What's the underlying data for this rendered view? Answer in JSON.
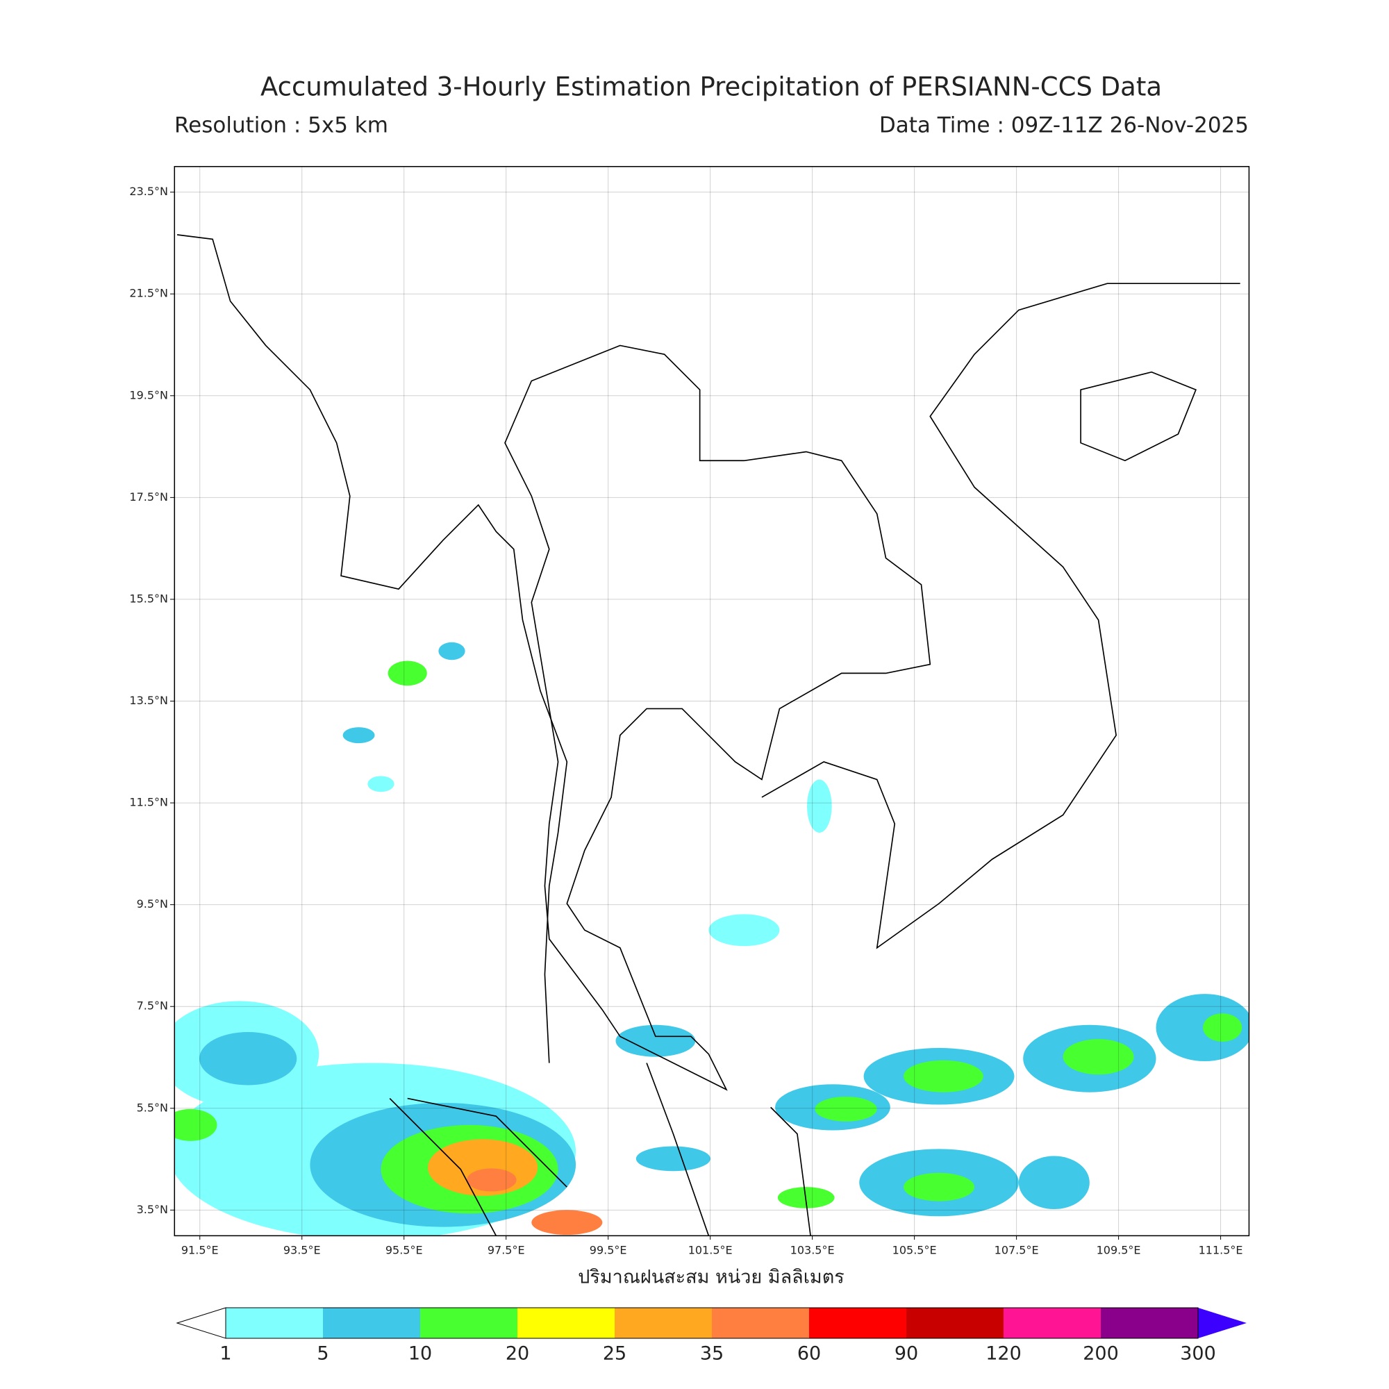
{
  "header": {
    "title": "Accumulated 3-Hourly Estimation Precipitation of PERSIANN-CCS Data",
    "resolution": "Resolution : 5x5 km",
    "data_time": "Data Time : 09Z-11Z 26-Nov-2025"
  },
  "map": {
    "lonlim": [
      91,
      112.05
    ],
    "latlim": [
      3,
      24
    ],
    "lonticks": [
      {
        "value": 91.5,
        "label": "91.5°E"
      },
      {
        "value": 93.5,
        "label": "93.5°E"
      },
      {
        "value": 95.5,
        "label": "95.5°E"
      },
      {
        "value": 97.5,
        "label": "97.5°E"
      },
      {
        "value": 99.5,
        "label": "99.5°E"
      },
      {
        "value": 101.5,
        "label": "101.5°E"
      },
      {
        "value": 103.5,
        "label": "103.5°E"
      },
      {
        "value": 105.5,
        "label": "105.5°E"
      },
      {
        "value": 107.5,
        "label": "107.5°E"
      },
      {
        "value": 109.5,
        "label": "109.5°E"
      },
      {
        "value": 111.5,
        "label": "111.5°E"
      }
    ],
    "latticks": [
      {
        "value": 3.5,
        "label": "3.5°N"
      },
      {
        "value": 5.5,
        "label": "5.5°N"
      },
      {
        "value": 7.5,
        "label": "7.5°N"
      },
      {
        "value": 9.5,
        "label": "9.5°N"
      },
      {
        "value": 11.5,
        "label": "11.5°N"
      },
      {
        "value": 13.5,
        "label": "13.5°N"
      },
      {
        "value": 15.5,
        "label": "15.5°N"
      },
      {
        "value": 17.5,
        "label": "17.5°N"
      },
      {
        "value": 19.5,
        "label": "19.5°N"
      },
      {
        "value": 21.5,
        "label": "21.5°N"
      },
      {
        "value": 23.5,
        "label": "23.5°N"
      }
    ],
    "grid": true,
    "xlabel": "ปริมาณฝนสะสม หน่วย มิลลิเมตร"
  },
  "colorbar": {
    "levels": [
      1,
      5,
      10,
      20,
      25,
      35,
      60,
      90,
      120,
      200,
      300
    ],
    "colors": [
      "#80ffff",
      "#40c8e8",
      "#48ff30",
      "#ffff00",
      "#ffa820",
      "#ff7f40",
      "#ff0000",
      "#c80000",
      "#ff1493",
      "#8b008b"
    ],
    "under_color": "#ffffff",
    "over_color": "#3c00ff"
  }
}
